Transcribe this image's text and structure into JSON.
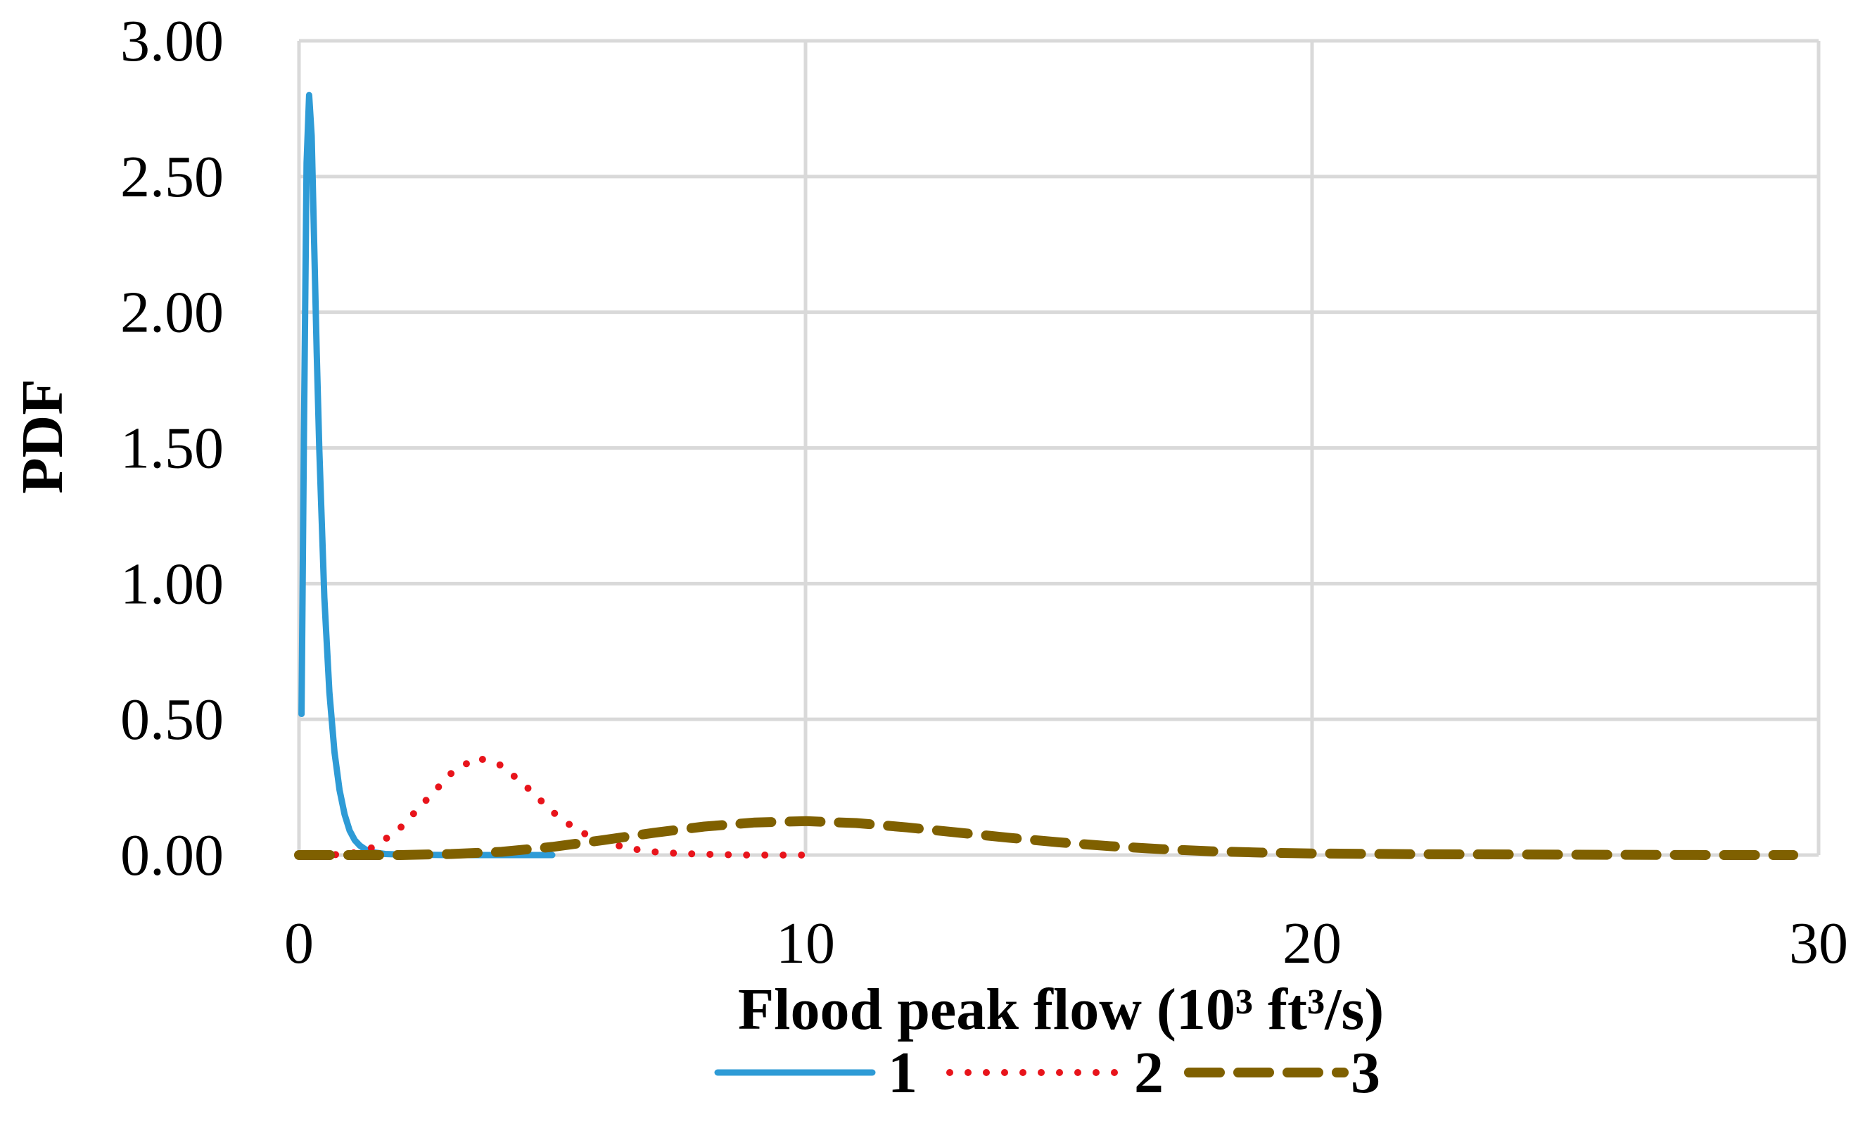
{
  "chart_data": {
    "type": "line",
    "title": "",
    "xlabel": "Flood peak flow (10³ ft³/s)",
    "ylabel": "PDF",
    "xlim": [
      0,
      30
    ],
    "ylim": [
      0,
      3.0
    ],
    "x_ticks": [
      0,
      10,
      20,
      30
    ],
    "y_ticks": [
      0.0,
      0.5,
      1.0,
      1.5,
      2.0,
      2.5,
      3.0
    ],
    "x_tick_labels": [
      "0",
      "10",
      "20",
      "30"
    ],
    "y_tick_labels": [
      "0.00",
      "0.50",
      "1.00",
      "1.50",
      "2.00",
      "2.50",
      "3.00"
    ],
    "grid": true,
    "legend_position": "bottom",
    "series": [
      {
        "name": "1",
        "color": "#2e9bd6",
        "style": "solid",
        "x": [
          0.05,
          0.1,
          0.15,
          0.2,
          0.25,
          0.3,
          0.35,
          0.4,
          0.5,
          0.6,
          0.7,
          0.8,
          0.9,
          1.0,
          1.1,
          1.2,
          1.3,
          1.4,
          1.5,
          1.7,
          2.0,
          2.5,
          3.0,
          4.0,
          5.0
        ],
        "y": [
          0.52,
          1.6,
          2.55,
          2.8,
          2.65,
          2.25,
          1.85,
          1.5,
          0.95,
          0.6,
          0.38,
          0.24,
          0.15,
          0.09,
          0.055,
          0.035,
          0.022,
          0.014,
          0.009,
          0.004,
          0.002,
          0.001,
          0.0,
          0.0,
          0.0
        ]
      },
      {
        "name": "2",
        "color": "#e8141b",
        "style": "dotted",
        "x": [
          0.0,
          0.5,
          1.0,
          1.5,
          2.0,
          2.5,
          3.0,
          3.5,
          4.0,
          4.5,
          5.0,
          5.5,
          6.0,
          6.5,
          7.0,
          7.5,
          8.0,
          8.5,
          9.0,
          9.5,
          10.0
        ],
        "y": [
          0.0,
          0.0,
          0.004,
          0.03,
          0.1,
          0.2,
          0.3,
          0.36,
          0.33,
          0.25,
          0.16,
          0.09,
          0.05,
          0.025,
          0.012,
          0.006,
          0.003,
          0.001,
          0.0,
          0.0,
          0.0
        ]
      },
      {
        "name": "3",
        "color": "#7f6000",
        "style": "dashed",
        "x": [
          0.0,
          1.0,
          2.0,
          3.0,
          4.0,
          5.0,
          6.0,
          7.0,
          8.0,
          9.0,
          10.0,
          11.0,
          12.0,
          13.0,
          14.0,
          15.0,
          16.0,
          17.0,
          18.0,
          19.0,
          20.0,
          22.0,
          24.0,
          26.0,
          28.0,
          29.5
        ],
        "y": [
          0.0,
          0.0,
          0.0,
          0.004,
          0.012,
          0.03,
          0.055,
          0.082,
          0.105,
          0.12,
          0.125,
          0.118,
          0.102,
          0.083,
          0.064,
          0.047,
          0.033,
          0.022,
          0.014,
          0.009,
          0.006,
          0.003,
          0.002,
          0.001,
          0.0,
          0.0
        ]
      }
    ]
  }
}
